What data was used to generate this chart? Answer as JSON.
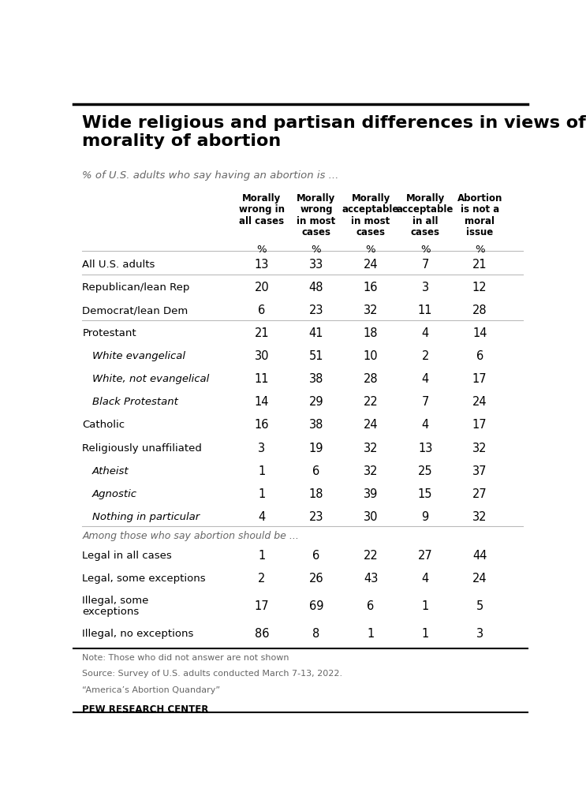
{
  "title": "Wide religious and partisan differences in views of the\nmorality of abortion",
  "subtitle": "% of U.S. adults who say having an abortion is ...",
  "col_headers": [
    "Morally\nwrong in\nall cases",
    "Morally\nwrong\nin most\ncases",
    "Morally\nacceptable\nin most\ncases",
    "Morally\nacceptable\nin all\ncases",
    "Abortion\nis not a\nmoral\nissue"
  ],
  "col_unit": "%",
  "rows": [
    {
      "label": "All U.S. adults",
      "values": [
        13,
        33,
        24,
        7,
        21
      ],
      "indent": false,
      "italic": false,
      "separator_above": false,
      "section_header": false
    },
    {
      "label": "Republican/lean Rep",
      "values": [
        20,
        48,
        16,
        3,
        12
      ],
      "indent": false,
      "italic": false,
      "separator_above": true,
      "section_header": false
    },
    {
      "label": "Democrat/lean Dem",
      "values": [
        6,
        23,
        32,
        11,
        28
      ],
      "indent": false,
      "italic": false,
      "separator_above": false,
      "section_header": false
    },
    {
      "label": "Protestant",
      "values": [
        21,
        41,
        18,
        4,
        14
      ],
      "indent": false,
      "italic": false,
      "separator_above": true,
      "section_header": false
    },
    {
      "label": "White evangelical",
      "values": [
        30,
        51,
        10,
        2,
        6
      ],
      "indent": true,
      "italic": true,
      "separator_above": false,
      "section_header": false
    },
    {
      "label": "White, not evangelical",
      "values": [
        11,
        38,
        28,
        4,
        17
      ],
      "indent": true,
      "italic": true,
      "separator_above": false,
      "section_header": false
    },
    {
      "label": "Black Protestant",
      "values": [
        14,
        29,
        22,
        7,
        24
      ],
      "indent": true,
      "italic": true,
      "separator_above": false,
      "section_header": false
    },
    {
      "label": "Catholic",
      "values": [
        16,
        38,
        24,
        4,
        17
      ],
      "indent": false,
      "italic": false,
      "separator_above": false,
      "section_header": false
    },
    {
      "label": "Religiously unaffiliated",
      "values": [
        3,
        19,
        32,
        13,
        32
      ],
      "indent": false,
      "italic": false,
      "separator_above": false,
      "section_header": false
    },
    {
      "label": "Atheist",
      "values": [
        1,
        6,
        32,
        25,
        37
      ],
      "indent": true,
      "italic": true,
      "separator_above": false,
      "section_header": false
    },
    {
      "label": "Agnostic",
      "values": [
        1,
        18,
        39,
        15,
        27
      ],
      "indent": true,
      "italic": true,
      "separator_above": false,
      "section_header": false
    },
    {
      "label": "Nothing in particular",
      "values": [
        4,
        23,
        30,
        9,
        32
      ],
      "indent": true,
      "italic": true,
      "separator_above": false,
      "section_header": false
    },
    {
      "label": "Among those who say abortion should be ...",
      "values": null,
      "indent": false,
      "italic": true,
      "separator_above": true,
      "section_header": true
    },
    {
      "label": "Legal in all cases",
      "values": [
        1,
        6,
        22,
        27,
        44
      ],
      "indent": false,
      "italic": false,
      "separator_above": false,
      "section_header": false
    },
    {
      "label": "Legal, some exceptions",
      "values": [
        2,
        26,
        43,
        4,
        24
      ],
      "indent": false,
      "italic": false,
      "separator_above": false,
      "section_header": false
    },
    {
      "label": "Illegal, some\nexceptions",
      "values": [
        17,
        69,
        6,
        1,
        5
      ],
      "indent": false,
      "italic": false,
      "separator_above": false,
      "section_header": false
    },
    {
      "label": "Illegal, no exceptions",
      "values": [
        86,
        8,
        1,
        1,
        3
      ],
      "indent": false,
      "italic": false,
      "separator_above": false,
      "section_header": false
    }
  ],
  "footer_lines": [
    "Note: Those who did not answer are not shown",
    "Source: Survey of U.S. adults conducted March 7-13, 2022.",
    "“America’s Abortion Quandary”"
  ],
  "footer_bold": "PEW RESEARCH CENTER",
  "bg_color": "#ffffff",
  "text_color": "#000000",
  "gray_color": "#666666",
  "separator_color": "#bbbbbb"
}
